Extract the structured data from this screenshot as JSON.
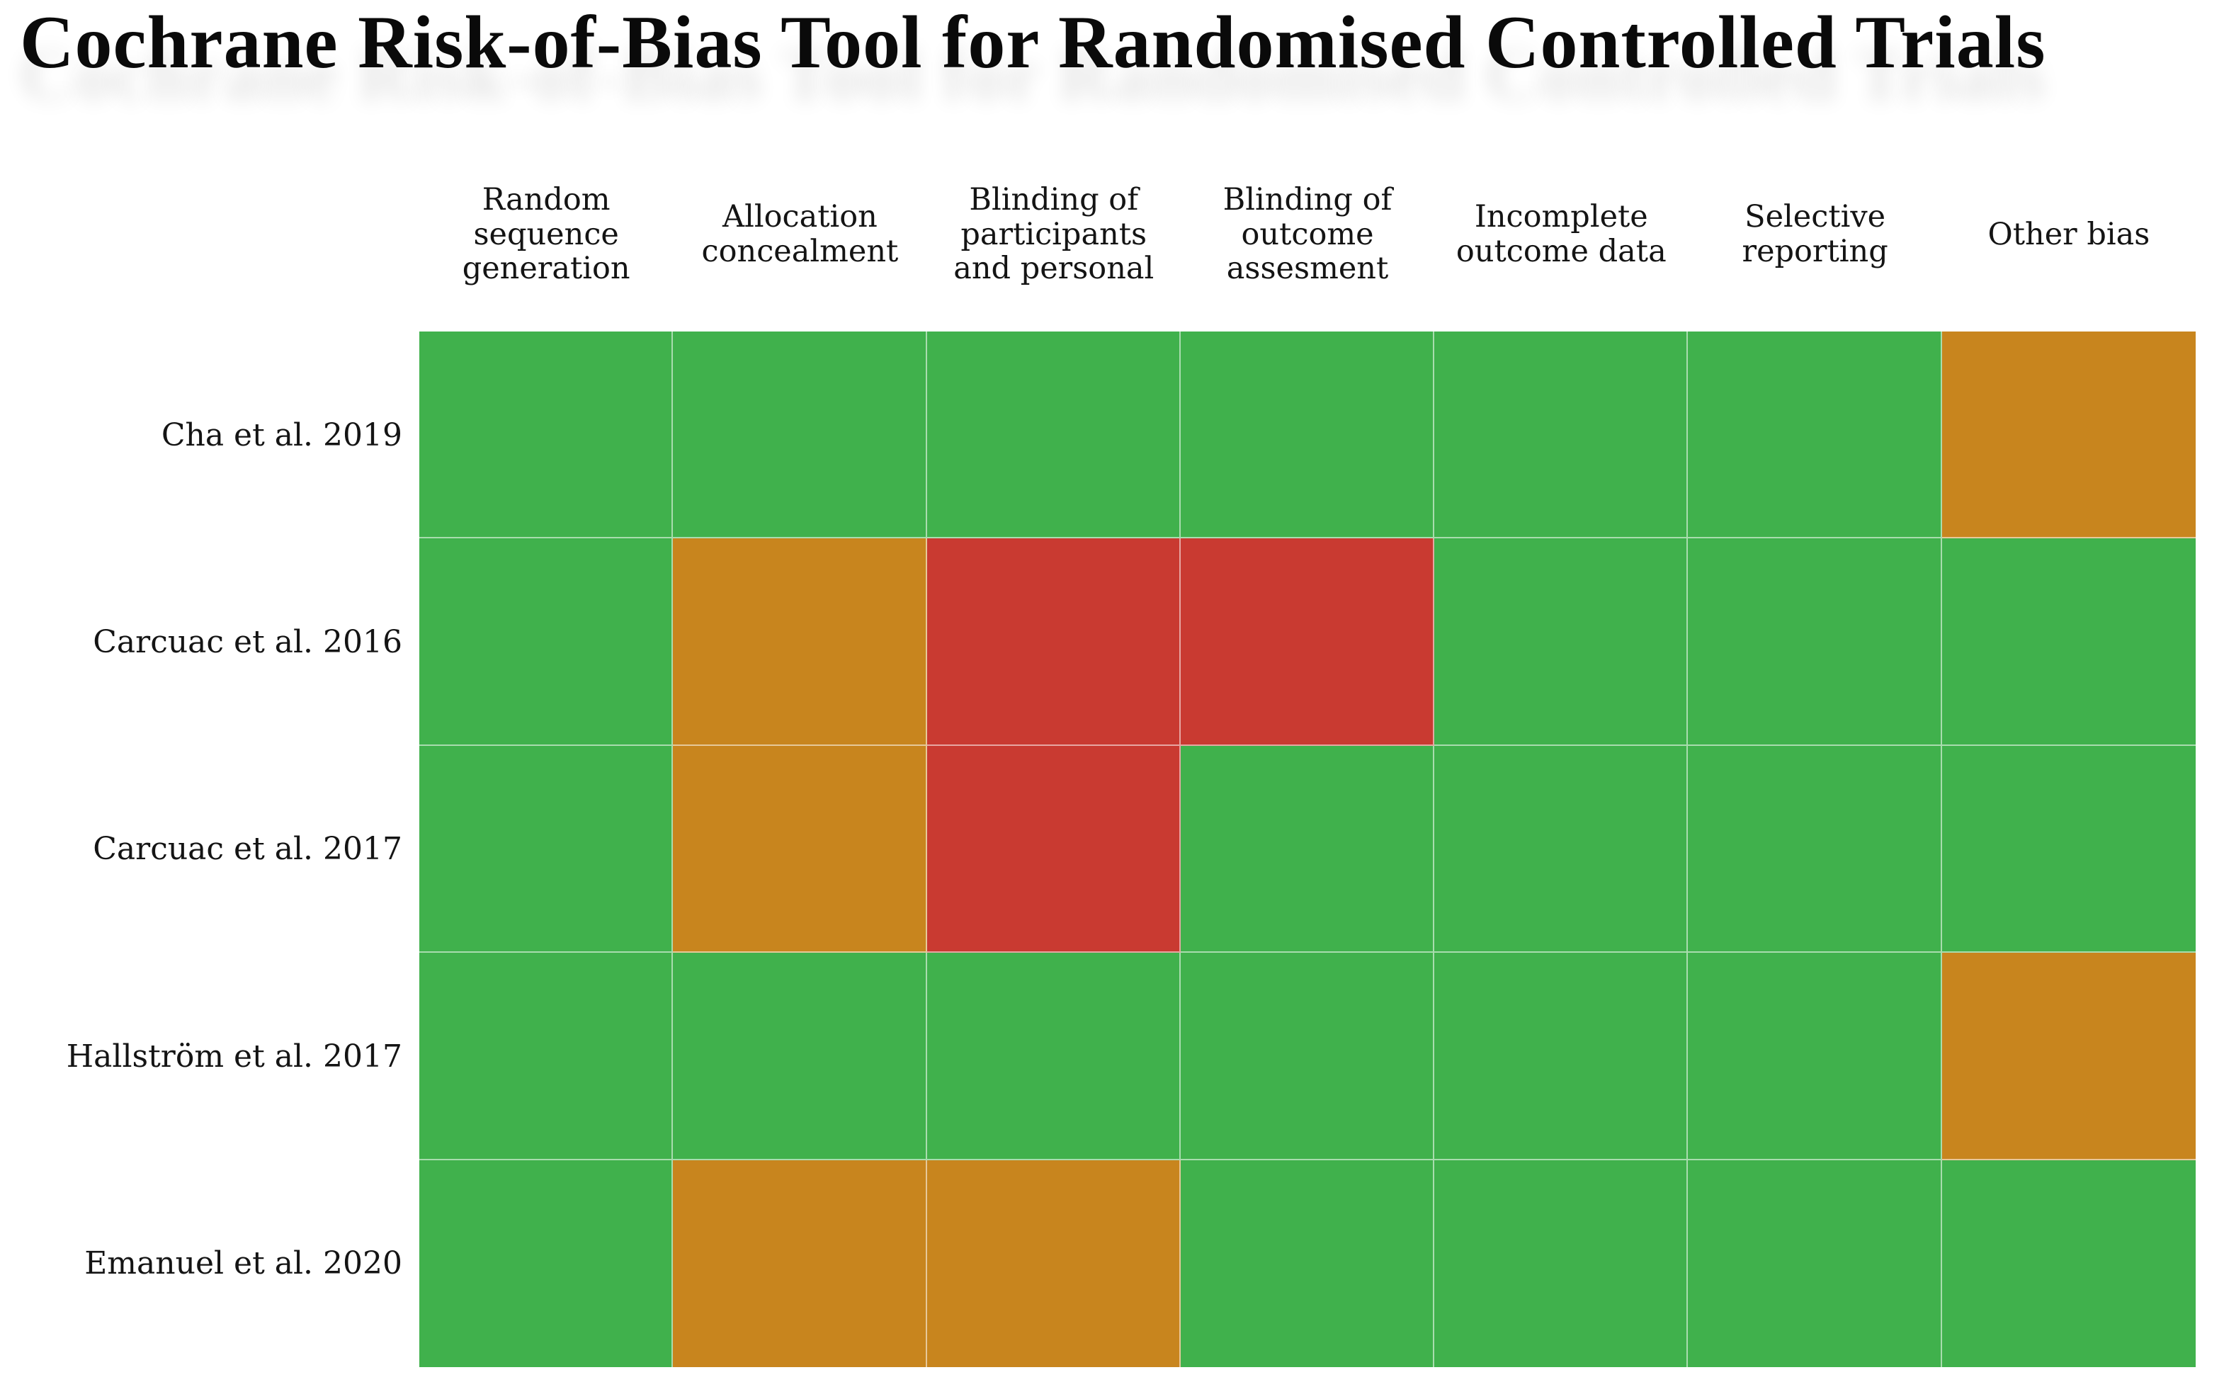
{
  "title": "Cochrane Risk-of-Bias Tool for Randomised Controlled Trials",
  "background_color": "#ffffff",
  "chart_data": {
    "type": "heatmap",
    "title": "Cochrane Risk-of-Bias Tool for Randomised Controlled Trials",
    "columns": [
      "Random sequence generation",
      "Allocation concealment",
      "Blinding of participants and personal",
      "Blinding of outcome assesment",
      "Incomplete outcome data",
      "Selective reporting",
      "Other bias"
    ],
    "columns_display": [
      "Random\nsequence\ngeneration",
      "Allocation\nconcealment",
      "Blinding of\nparticipants\nand personal",
      "Blinding of\noutcome\nassesment",
      "Incomplete\noutcome data",
      "Selective\nreporting",
      "Other bias"
    ],
    "rows": [
      "Cha et al. 2019",
      "Carcuac et al. 2016",
      "Carcuac et al. 2017",
      "Hallström et al. 2017",
      "Emanuel et al. 2020"
    ],
    "values": [
      [
        "low",
        "low",
        "low",
        "low",
        "low",
        "low",
        "unclear"
      ],
      [
        "low",
        "unclear",
        "high",
        "high",
        "low",
        "low",
        "low"
      ],
      [
        "low",
        "unclear",
        "high",
        "low",
        "low",
        "low",
        "low"
      ],
      [
        "low",
        "low",
        "low",
        "low",
        "low",
        "low",
        "unclear"
      ],
      [
        "low",
        "unclear",
        "unclear",
        "low",
        "low",
        "low",
        "low"
      ]
    ],
    "colors": {
      "low": "#40B14C",
      "unclear": "#C8851E",
      "high": "#C93A31"
    },
    "legend": "none",
    "grid_separator_color": "rgba(255,255,255,0.55)"
  }
}
